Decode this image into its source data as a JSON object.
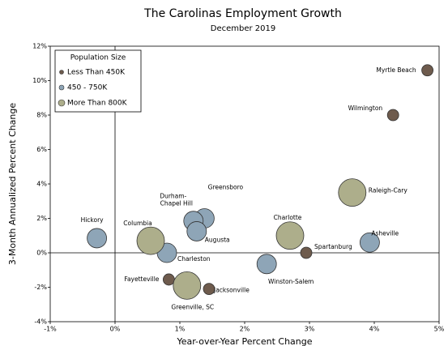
{
  "chart_data": {
    "type": "scatter",
    "title": "The Carolinas Employment Growth",
    "subtitle": "December 2019",
    "x_label": "Year-over-Year Percent Change",
    "y_label": "3-Month Annualized Percent Change",
    "legend_title": "Population Size",
    "legend": "upper left",
    "xlim": [
      -1,
      5
    ],
    "ylim": [
      -4,
      12
    ],
    "xticks": [
      {
        "value": -1,
        "label": "-1%"
      },
      {
        "value": 0,
        "label": "0%"
      },
      {
        "value": 1,
        "label": "1%"
      },
      {
        "value": 2,
        "label": "2%"
      },
      {
        "value": 3,
        "label": "3%"
      },
      {
        "value": 4,
        "label": "4%"
      },
      {
        "value": 5,
        "label": "5%"
      }
    ],
    "yticks": [
      {
        "value": -4,
        "label": "-4%"
      },
      {
        "value": -2,
        "label": "-2%"
      },
      {
        "value": 0,
        "label": "0%"
      },
      {
        "value": 2,
        "label": "2%"
      },
      {
        "value": 4,
        "label": "4%"
      },
      {
        "value": 6,
        "label": "6%"
      },
      {
        "value": 8,
        "label": "8%"
      },
      {
        "value": 10,
        "label": "10%"
      },
      {
        "value": 12,
        "label": "12%"
      }
    ],
    "series": [
      {
        "name": "Less Than 450K",
        "color": "#6e5b4d",
        "labels": [
          "Myrtle Beach",
          "Wilmington",
          "Spartanburg",
          "Fayetteville",
          "Jacksonville"
        ],
        "x": [
          4.82,
          4.29,
          2.95,
          0.83,
          1.45
        ],
        "values": [
          10.6,
          8.0,
          0.0,
          -1.55,
          -2.1
        ]
      },
      {
        "name": "450 - 750K",
        "color": "#8ea5b7",
        "labels": [
          "Asheville",
          "Winston-Salem",
          "Greensboro",
          "Durham-Chapel Hill",
          "Augusta",
          "Charleston",
          "Hickory"
        ],
        "x": [
          3.93,
          2.34,
          1.38,
          1.21,
          1.26,
          0.8,
          -0.28
        ],
        "values": [
          0.6,
          -0.65,
          2.0,
          1.85,
          1.25,
          0.0,
          0.85
        ]
      },
      {
        "name": "More Than 800K",
        "color": "#adae8b",
        "labels": [
          "Raleigh-Cary",
          "Charlotte",
          "Columbia",
          "Greenville, SC"
        ],
        "x": [
          3.66,
          2.7,
          0.55,
          1.11
        ],
        "values": [
          3.5,
          1.0,
          0.7,
          -1.9
        ]
      }
    ]
  }
}
